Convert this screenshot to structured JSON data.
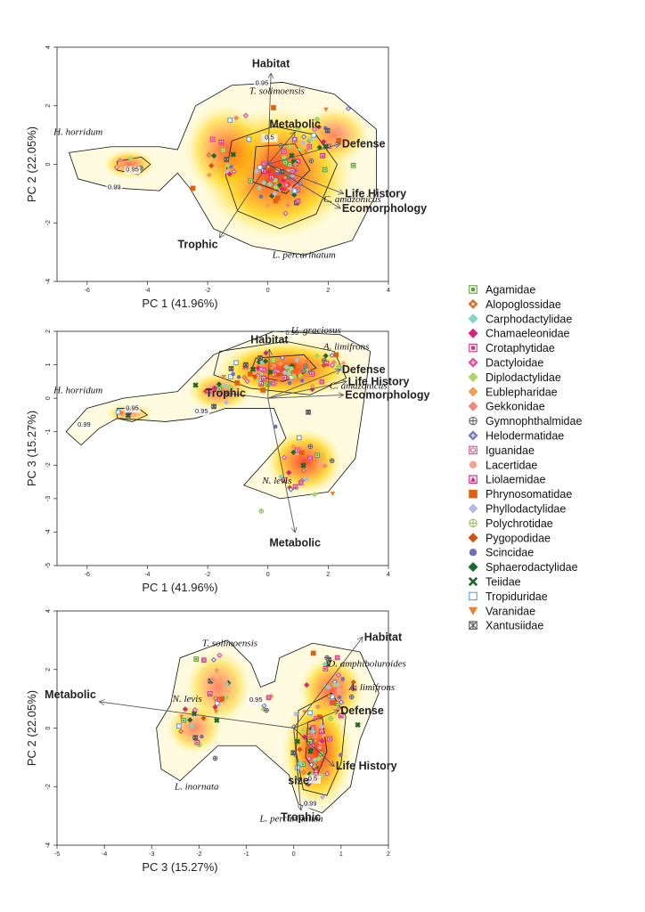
{
  "legend": [
    {
      "label": "Agamidae",
      "color": "#5aa02c",
      "shape": "square-dot"
    },
    {
      "label": "Alopoglossidae",
      "color": "#e07020",
      "shape": "diamond-dot"
    },
    {
      "label": "Carphodactylidae",
      "color": "#7fd6c6",
      "shape": "diamond"
    },
    {
      "label": "Chamaeleonidae",
      "color": "#e0207a",
      "shape": "diamond"
    },
    {
      "label": "Crotaphytidae",
      "color": "#d8327a",
      "shape": "square-dot"
    },
    {
      "label": "Dactyloidae",
      "color": "#e8409a",
      "shape": "diamond-plus"
    },
    {
      "label": "Diplodactylidae",
      "color": "#a8d860",
      "shape": "diamond"
    },
    {
      "label": "Eublepharidae",
      "color": "#f0a050",
      "shape": "diamond"
    },
    {
      "label": "Gekkonidae",
      "color": "#f08878",
      "shape": "diamond"
    },
    {
      "label": "Gymnophthalmidae",
      "color": "#666666",
      "shape": "circle-plus"
    },
    {
      "label": "Helodermatidae",
      "color": "#7070c0",
      "shape": "diamond-plus"
    },
    {
      "label": "Iguanidae",
      "color": "#e04890",
      "shape": "square-circle"
    },
    {
      "label": "Lacertidae",
      "color": "#f8a090",
      "shape": "circle"
    },
    {
      "label": "Liolaemidae",
      "color": "#d8207a",
      "shape": "square-triangle"
    },
    {
      "label": "Phrynosomatidae",
      "color": "#e06010",
      "shape": "square"
    },
    {
      "label": "Phyllodactylidae",
      "color": "#b8b8e8",
      "shape": "diamond"
    },
    {
      "label": "Polychrotidae",
      "color": "#90c850",
      "shape": "circle-plus"
    },
    {
      "label": "Pygopodidae",
      "color": "#d85010",
      "shape": "diamond"
    },
    {
      "label": "Scincidae",
      "color": "#7070c0",
      "shape": "circle"
    },
    {
      "label": "Sphaerodactylidae",
      "color": "#1a6a2a",
      "shape": "diamond"
    },
    {
      "label": "Teiidae",
      "color": "#1a6a2a",
      "shape": "cross"
    },
    {
      "label": "Tropiduridae",
      "color": "#5aa0e0",
      "shape": "square-open"
    },
    {
      "label": "Varanidae",
      "color": "#f08030",
      "shape": "triangle-down"
    },
    {
      "label": "Xantusiidae",
      "color": "#555555",
      "shape": "square-star"
    }
  ],
  "chart_data": [
    {
      "type": "scatter",
      "xlabel": "PC 1 (41.96%)",
      "ylabel": "PC 2 (22.05%)",
      "xlim": [
        -7,
        4
      ],
      "ylim": [
        -4,
        4
      ],
      "xticks": [
        "-6",
        "-4",
        "-2",
        "0",
        "2",
        "4"
      ],
      "yticks": [
        "-4",
        "-2",
        "0",
        "2",
        "4"
      ],
      "contour_labels": [
        "0.95",
        "0.5",
        "0.95",
        "0.99"
      ],
      "loadings": [
        {
          "label": "Habitat",
          "x": 0.1,
          "y": 3.1
        },
        {
          "label": "Metabolic",
          "x": 0.9,
          "y": 1.1
        },
        {
          "label": "Defense",
          "x": 2.4,
          "y": 0.7
        },
        {
          "label": "Life History",
          "x": 2.5,
          "y": -1.0
        },
        {
          "label": "Ecomorphology",
          "x": 2.4,
          "y": -1.5
        },
        {
          "label": "Trophic",
          "x": -1.6,
          "y": -2.5
        }
      ],
      "species_labels": [
        {
          "label": "T. solimoensis",
          "x": 0.3,
          "y": 2.4
        },
        {
          "label": "H. horridum",
          "x": -6.3,
          "y": 1.0
        },
        {
          "label": "C. amazonicus",
          "x": 2.8,
          "y": -1.3
        },
        {
          "label": "L. percarinatum",
          "x": 1.2,
          "y": -3.2
        }
      ]
    },
    {
      "type": "scatter",
      "xlabel": "PC 1 (41.96%)",
      "ylabel": "PC 3 (15.27%)",
      "xlim": [
        -7,
        4
      ],
      "ylim": [
        -5,
        2
      ],
      "xticks": [
        "-6",
        "-4",
        "-2",
        "0",
        "2",
        "4"
      ],
      "yticks": [
        "-5",
        "-4",
        "-3",
        "-2",
        "-1",
        "0",
        "1",
        "2"
      ],
      "contour_labels": [
        "0.99",
        "0.95",
        "0.95",
        "0.99"
      ],
      "loadings": [
        {
          "label": "Habitat",
          "x": 0.05,
          "y": 1.45
        },
        {
          "label": "Defense",
          "x": 2.4,
          "y": 0.85
        },
        {
          "label": "Life History",
          "x": 2.6,
          "y": 0.5
        },
        {
          "label": "Ecomorphology",
          "x": 2.5,
          "y": 0.1
        },
        {
          "label": "Trophic",
          "x": -1.4,
          "y": 0.15
        },
        {
          "label": "Metabolic",
          "x": 0.9,
          "y": -4.0
        }
      ],
      "species_labels": [
        {
          "label": "U. graciosus",
          "x": 1.6,
          "y": 1.95
        },
        {
          "label": "A. limifrons",
          "x": 2.6,
          "y": 1.45
        },
        {
          "label": "C. amazonicus",
          "x": 3.0,
          "y": 0.28
        },
        {
          "label": "H. horridum",
          "x": -6.3,
          "y": 0.15
        },
        {
          "label": "N. levis",
          "x": 0.3,
          "y": -2.55
        }
      ]
    },
    {
      "type": "scatter",
      "xlabel": "PC 3 (15.27%)",
      "ylabel": "PC 2 (22.05%)",
      "xlim": [
        -5,
        2
      ],
      "ylim": [
        -4,
        4
      ],
      "xticks": [
        "-5",
        "-4",
        "-3",
        "-2",
        "-1",
        "0",
        "1",
        "2"
      ],
      "yticks": [
        "-4",
        "-2",
        "0",
        "2",
        "4"
      ],
      "contour_labels": [
        "0.95",
        "0.5",
        "0.99"
      ],
      "loadings": [
        {
          "label": "Habitat",
          "x": 1.45,
          "y": 3.1
        },
        {
          "label": "Metabolic",
          "x": -4.1,
          "y": 0.9
        },
        {
          "label": "Defense",
          "x": 0.95,
          "y": 0.6
        },
        {
          "label": "Life History",
          "x": 0.85,
          "y": -1.3
        },
        {
          "label": "size",
          "x": 0.1,
          "y": -1.8
        },
        {
          "label": "Trophic",
          "x": 0.15,
          "y": -2.8
        }
      ],
      "species_labels": [
        {
          "label": "T. solimoensis",
          "x": -1.35,
          "y": 2.8
        },
        {
          "label": "D. amphiboluroides",
          "x": 1.55,
          "y": 2.1
        },
        {
          "label": "A. limifrons",
          "x": 1.65,
          "y": 1.3
        },
        {
          "label": "N. levis",
          "x": -2.25,
          "y": 0.9
        },
        {
          "label": "L. inornata",
          "x": -2.05,
          "y": -2.1
        },
        {
          "label": "L. percarinatum",
          "x": -0.05,
          "y": -3.2
        }
      ]
    }
  ]
}
